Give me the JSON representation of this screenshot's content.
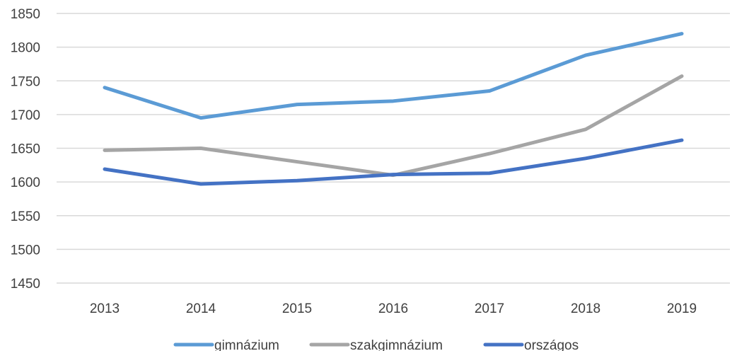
{
  "chart_data": {
    "type": "line",
    "title": "",
    "xlabel": "",
    "ylabel": "",
    "categories": [
      "2013",
      "2014",
      "2015",
      "2016",
      "2017",
      "2018",
      "2019"
    ],
    "ylim": [
      1450,
      1850
    ],
    "yticks": [
      "1450",
      "1500",
      "1550",
      "1600",
      "1650",
      "1700",
      "1750",
      "1800",
      "1850"
    ],
    "grid": "horizontal",
    "legend_position": "bottom",
    "series": [
      {
        "name": "gimnázium",
        "color": "#5b9bd5",
        "values": [
          1740,
          1695,
          1715,
          1720,
          1735,
          1788,
          1820
        ]
      },
      {
        "name": "szakgimnázium",
        "color": "#a5a5a5",
        "values": [
          1647,
          1650,
          1630,
          1610,
          1642,
          1678,
          1757
        ]
      },
      {
        "name": "országos",
        "color": "#4472c4",
        "values": [
          1619,
          1597,
          1602,
          1611,
          1613,
          1635,
          1662
        ]
      }
    ]
  }
}
